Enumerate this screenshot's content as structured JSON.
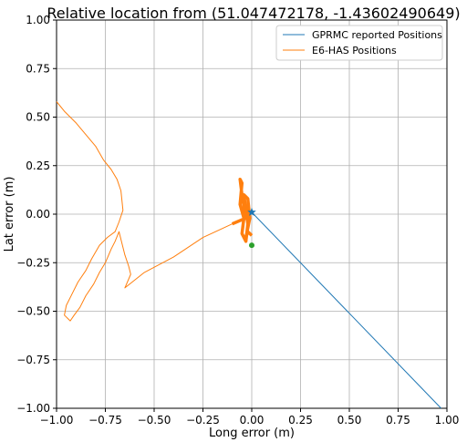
{
  "chart_data": {
    "type": "line",
    "title": "Relative location from (51.047472178, -1.43602490649)",
    "xlabel": "Long error (m)",
    "ylabel": "Lat error (m)",
    "xlim": [
      -1.0,
      1.0
    ],
    "ylim": [
      -1.0,
      1.0
    ],
    "xticks": [
      "−1.00",
      "−0.75",
      "−0.50",
      "−0.25",
      "0.00",
      "0.25",
      "0.50",
      "0.75",
      "1.00"
    ],
    "yticks": [
      "1.00",
      "0.75",
      "0.50",
      "0.25",
      "0.00",
      "−0.25",
      "−0.50",
      "−0.75",
      "−1.00"
    ],
    "grid": true,
    "legend_position": "top-right",
    "series": [
      {
        "name": "GPRMC reported Positions",
        "color": "#1f77b4",
        "x": [
          0.0,
          0.97
        ],
        "y": [
          0.01,
          -1.0
        ]
      },
      {
        "name": "E6-HAS Positions",
        "color": "#ff7f0e",
        "x": [
          -1.0,
          -0.96,
          -0.9,
          -0.85,
          -0.8,
          -0.76,
          -0.72,
          -0.69,
          -0.67,
          -0.66,
          -0.68,
          -0.7,
          -0.74,
          -0.78,
          -0.82,
          -0.85,
          -0.89,
          -0.92,
          -0.95,
          -0.96,
          -0.93,
          -0.91,
          -0.88,
          -0.85,
          -0.81,
          -0.78,
          -0.75,
          -0.72,
          -0.7,
          -0.68,
          -0.65,
          -0.63,
          -0.62,
          -0.65,
          -0.55,
          -0.4,
          -0.25,
          -0.1,
          -0.03,
          -0.05,
          -0.06,
          -0.05,
          -0.06,
          -0.04,
          -0.05,
          -0.03,
          -0.02,
          -0.04,
          -0.02,
          -0.01,
          -0.03,
          -0.02,
          0.0
        ],
        "y": [
          0.58,
          0.53,
          0.47,
          0.41,
          0.35,
          0.28,
          0.23,
          0.18,
          0.12,
          0.02,
          -0.04,
          -0.09,
          -0.12,
          -0.16,
          -0.23,
          -0.29,
          -0.35,
          -0.41,
          -0.47,
          -0.52,
          -0.55,
          -0.52,
          -0.48,
          -0.42,
          -0.36,
          -0.3,
          -0.25,
          -0.18,
          -0.14,
          -0.09,
          -0.21,
          -0.27,
          -0.31,
          -0.38,
          -0.3,
          -0.22,
          -0.12,
          -0.05,
          -0.02,
          0.1,
          0.18,
          0.16,
          0.05,
          -0.02,
          -0.1,
          -0.14,
          -0.05,
          0.1,
          0.08,
          -0.02,
          -0.12,
          -0.09,
          -0.11
        ]
      }
    ],
    "markers": [
      {
        "name": "start-marker",
        "x": 0.0,
        "y": 0.01,
        "color": "#1f77b4",
        "shape": "star"
      },
      {
        "name": "end-marker",
        "x": 0.0,
        "y": -0.16,
        "color": "#2ca02c",
        "shape": "circle"
      }
    ]
  }
}
